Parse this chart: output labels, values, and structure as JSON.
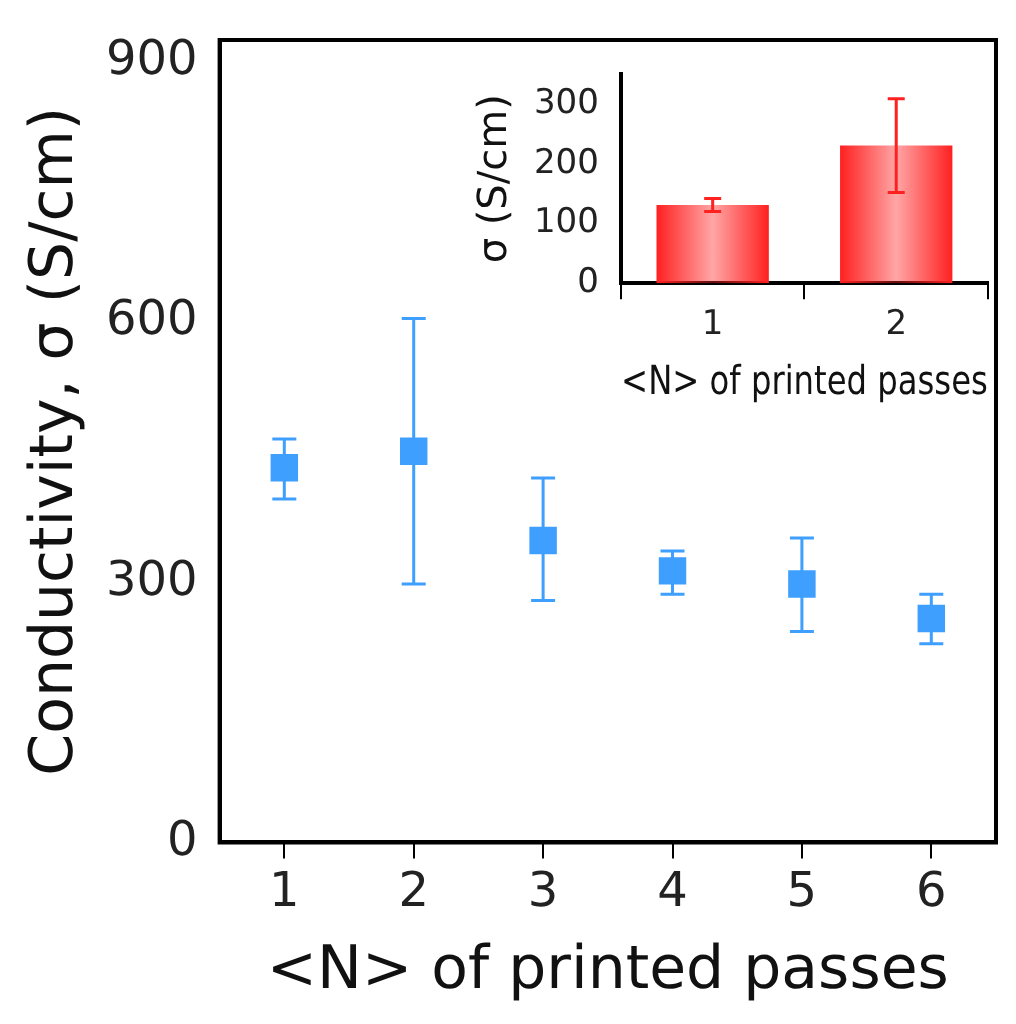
{
  "chart_data": [
    {
      "type": "scatter",
      "xlabel": "<N> of printed passes",
      "ylabel": "Conductivity, σ (S/cm)",
      "x": [
        1,
        2,
        3,
        4,
        5,
        6
      ],
      "values": [
        432,
        451,
        348,
        313,
        298,
        258
      ],
      "errors": [
        [
          396,
          465
        ],
        [
          298,
          604
        ],
        [
          279,
          420
        ],
        [
          286,
          336
        ],
        [
          243,
          351
        ],
        [
          229,
          286
        ]
      ],
      "color": "#3f9fff",
      "marker": "square",
      "xlim": [
        0.5,
        6.5
      ],
      "xticks": [
        1,
        2,
        3,
        4,
        5,
        6
      ],
      "ylim": [
        0,
        925
      ],
      "yticks": [
        0,
        300,
        600,
        900
      ]
    },
    {
      "type": "bar",
      "xlabel": "<N> of printed passes",
      "ylabel": "σ (S/cm)",
      "categories": [
        "1",
        "2"
      ],
      "values": [
        131,
        231
      ],
      "errors": [
        [
          120,
          142
        ],
        [
          152,
          309
        ]
      ],
      "color": "#ff2020",
      "ylim": [
        0,
        350
      ],
      "yticks": [
        0,
        100,
        200,
        300
      ]
    }
  ]
}
